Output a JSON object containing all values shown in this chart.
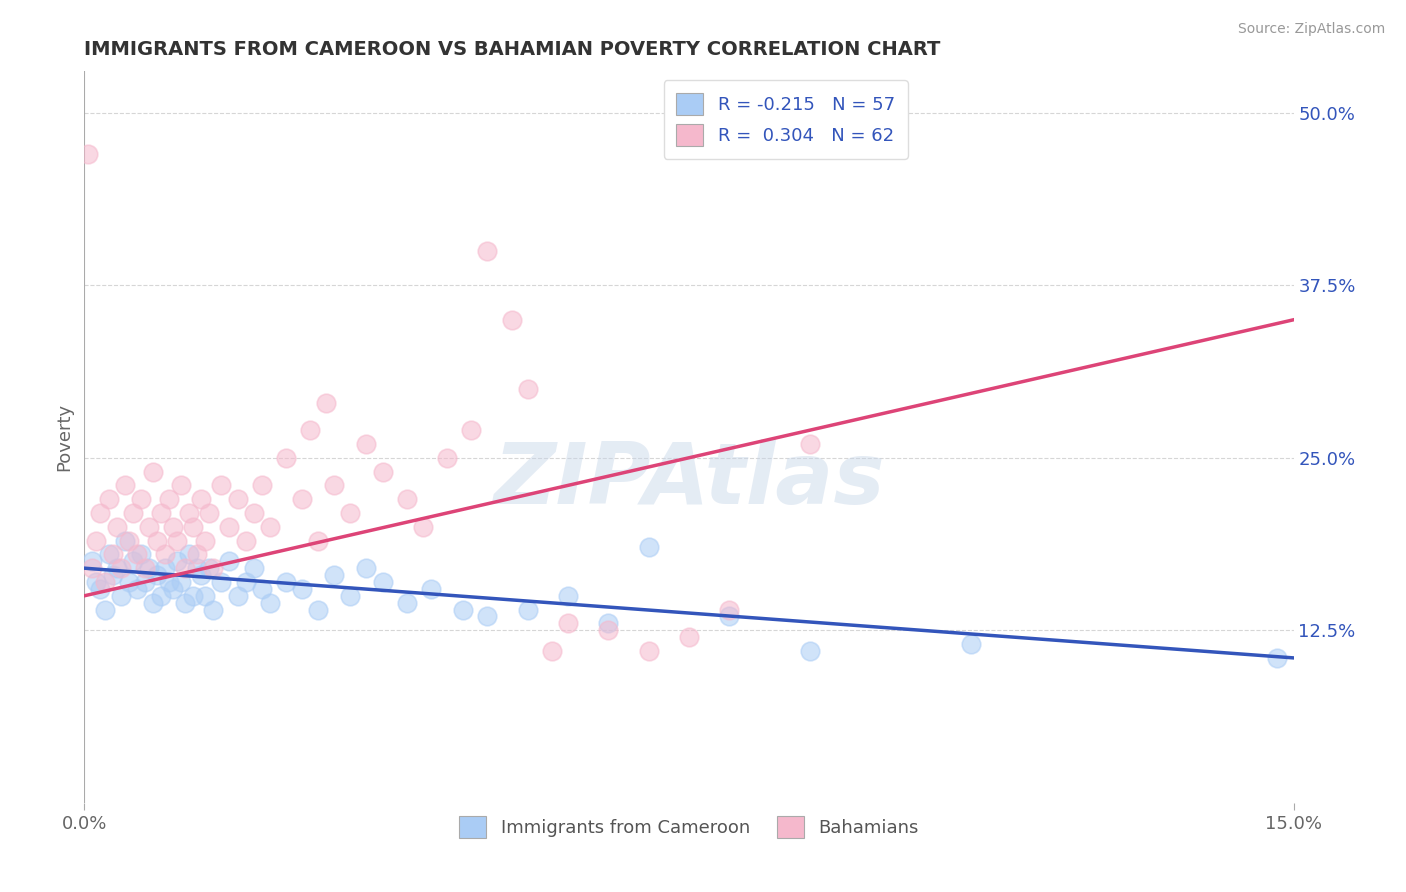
{
  "title": "IMMIGRANTS FROM CAMEROON VS BAHAMIAN POVERTY CORRELATION CHART",
  "source": "Source: ZipAtlas.com",
  "ylabel": "Poverty",
  "watermark": "ZIPAtlas",
  "xlim": [
    0.0,
    15.0
  ],
  "ylim": [
    0.0,
    53.0
  ],
  "yticks_right": [
    12.5,
    25.0,
    37.5,
    50.0
  ],
  "ytick_labels_right": [
    "12.5%",
    "25.0%",
    "37.5%",
    "50.0%"
  ],
  "series1_label": "Immigrants from Cameroon",
  "series1_color": "#aaccf5",
  "series1_edge_color": "#aaccf5",
  "series1_line_color": "#3355bb",
  "series1_R": -0.215,
  "series1_N": 57,
  "series2_label": "Bahamians",
  "series2_color": "#f5b8cc",
  "series2_edge_color": "#f5b8cc",
  "series2_line_color": "#dd4477",
  "series2_R": 0.304,
  "series2_N": 62,
  "legend_r1": "R = -0.215   N = 57",
  "legend_r2": "R =  0.304   N = 62",
  "background_color": "#ffffff",
  "grid_color": "#cccccc",
  "title_color": "#333333",
  "blue_scatter": [
    [
      0.1,
      17.5
    ],
    [
      0.15,
      16.0
    ],
    [
      0.2,
      15.5
    ],
    [
      0.25,
      14.0
    ],
    [
      0.3,
      18.0
    ],
    [
      0.35,
      16.5
    ],
    [
      0.4,
      17.0
    ],
    [
      0.45,
      15.0
    ],
    [
      0.5,
      19.0
    ],
    [
      0.55,
      16.0
    ],
    [
      0.6,
      17.5
    ],
    [
      0.65,
      15.5
    ],
    [
      0.7,
      18.0
    ],
    [
      0.75,
      16.0
    ],
    [
      0.8,
      17.0
    ],
    [
      0.85,
      14.5
    ],
    [
      0.9,
      16.5
    ],
    [
      0.95,
      15.0
    ],
    [
      1.0,
      17.0
    ],
    [
      1.05,
      16.0
    ],
    [
      1.1,
      15.5
    ],
    [
      1.15,
      17.5
    ],
    [
      1.2,
      16.0
    ],
    [
      1.25,
      14.5
    ],
    [
      1.3,
      18.0
    ],
    [
      1.35,
      15.0
    ],
    [
      1.4,
      17.0
    ],
    [
      1.45,
      16.5
    ],
    [
      1.5,
      15.0
    ],
    [
      1.55,
      17.0
    ],
    [
      1.6,
      14.0
    ],
    [
      1.7,
      16.0
    ],
    [
      1.8,
      17.5
    ],
    [
      1.9,
      15.0
    ],
    [
      2.0,
      16.0
    ],
    [
      2.1,
      17.0
    ],
    [
      2.2,
      15.5
    ],
    [
      2.3,
      14.5
    ],
    [
      2.5,
      16.0
    ],
    [
      2.7,
      15.5
    ],
    [
      2.9,
      14.0
    ],
    [
      3.1,
      16.5
    ],
    [
      3.3,
      15.0
    ],
    [
      3.5,
      17.0
    ],
    [
      3.7,
      16.0
    ],
    [
      4.0,
      14.5
    ],
    [
      4.3,
      15.5
    ],
    [
      4.7,
      14.0
    ],
    [
      5.0,
      13.5
    ],
    [
      5.5,
      14.0
    ],
    [
      6.0,
      15.0
    ],
    [
      6.5,
      13.0
    ],
    [
      7.0,
      18.5
    ],
    [
      8.0,
      13.5
    ],
    [
      9.0,
      11.0
    ],
    [
      11.0,
      11.5
    ],
    [
      14.8,
      10.5
    ]
  ],
  "pink_scatter": [
    [
      0.05,
      47.0
    ],
    [
      0.1,
      17.0
    ],
    [
      0.15,
      19.0
    ],
    [
      0.2,
      21.0
    ],
    [
      0.25,
      16.0
    ],
    [
      0.3,
      22.0
    ],
    [
      0.35,
      18.0
    ],
    [
      0.4,
      20.0
    ],
    [
      0.45,
      17.0
    ],
    [
      0.5,
      23.0
    ],
    [
      0.55,
      19.0
    ],
    [
      0.6,
      21.0
    ],
    [
      0.65,
      18.0
    ],
    [
      0.7,
      22.0
    ],
    [
      0.75,
      17.0
    ],
    [
      0.8,
      20.0
    ],
    [
      0.85,
      24.0
    ],
    [
      0.9,
      19.0
    ],
    [
      0.95,
      21.0
    ],
    [
      1.0,
      18.0
    ],
    [
      1.05,
      22.0
    ],
    [
      1.1,
      20.0
    ],
    [
      1.15,
      19.0
    ],
    [
      1.2,
      23.0
    ],
    [
      1.25,
      17.0
    ],
    [
      1.3,
      21.0
    ],
    [
      1.35,
      20.0
    ],
    [
      1.4,
      18.0
    ],
    [
      1.45,
      22.0
    ],
    [
      1.5,
      19.0
    ],
    [
      1.55,
      21.0
    ],
    [
      1.6,
      17.0
    ],
    [
      1.7,
      23.0
    ],
    [
      1.8,
      20.0
    ],
    [
      1.9,
      22.0
    ],
    [
      2.0,
      19.0
    ],
    [
      2.1,
      21.0
    ],
    [
      2.2,
      23.0
    ],
    [
      2.3,
      20.0
    ],
    [
      2.5,
      25.0
    ],
    [
      2.7,
      22.0
    ],
    [
      2.9,
      19.0
    ],
    [
      3.1,
      23.0
    ],
    [
      3.3,
      21.0
    ],
    [
      3.5,
      26.0
    ],
    [
      3.7,
      24.0
    ],
    [
      4.0,
      22.0
    ],
    [
      4.2,
      20.0
    ],
    [
      4.5,
      25.0
    ],
    [
      4.8,
      27.0
    ],
    [
      5.0,
      40.0
    ],
    [
      5.3,
      35.0
    ],
    [
      5.5,
      30.0
    ],
    [
      5.8,
      11.0
    ],
    [
      6.0,
      13.0
    ],
    [
      6.5,
      12.5
    ],
    [
      7.0,
      11.0
    ],
    [
      7.5,
      12.0
    ],
    [
      8.0,
      14.0
    ],
    [
      9.0,
      26.0
    ],
    [
      3.0,
      29.0
    ],
    [
      2.8,
      27.0
    ]
  ]
}
